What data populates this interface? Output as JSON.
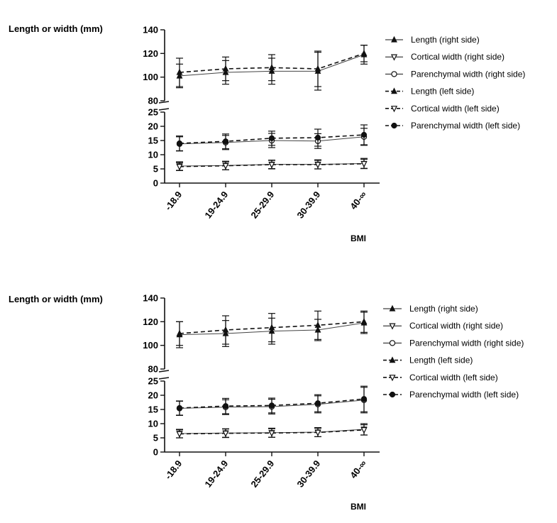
{
  "chart_data": [
    {
      "type": "line",
      "ylabel": "Length or width (mm)",
      "xlabel": "BMI",
      "categories": [
        "-18.9",
        "19-24.9",
        "25-29.9",
        "30-39.9",
        "40-∞"
      ],
      "y_axis_segments": [
        {
          "ylim": [
            80,
            140
          ],
          "ticks": [
            80,
            100,
            120,
            140
          ]
        },
        {
          "ylim": [
            0,
            25
          ],
          "ticks": [
            0,
            5,
            10,
            15,
            20,
            25
          ]
        }
      ],
      "grid": false,
      "legend_position": "right",
      "series": [
        {
          "name": "Length (right side)",
          "marker": "triangle-up",
          "dash": "solid",
          "values": [
            101,
            104,
            105,
            105,
            119
          ],
          "errors": [
            10,
            10,
            11,
            16,
            8
          ]
        },
        {
          "name": "Cortical width (right side)",
          "marker": "triangle-down",
          "dash": "solid",
          "values": [
            6.0,
            6.2,
            6.6,
            6.6,
            6.9
          ],
          "errors": [
            1.5,
            1.5,
            1.5,
            1.6,
            1.8
          ]
        },
        {
          "name": "Parenchymal width (right side)",
          "marker": "circle-open",
          "dash": "solid",
          "values": [
            13.8,
            14.3,
            15.0,
            14.8,
            16.3
          ],
          "errors": [
            2.5,
            2.5,
            2.5,
            2.6,
            3.0
          ]
        },
        {
          "name": "Length (left side)",
          "marker": "triangle-up",
          "dash": "dashed",
          "values": [
            104,
            107,
            108,
            107,
            120
          ],
          "errors": [
            12,
            10,
            11,
            15,
            7
          ]
        },
        {
          "name": "Cortical width (left side)",
          "marker": "triangle-down",
          "dash": "dashed",
          "values": [
            5.8,
            6.1,
            6.5,
            6.5,
            6.8
          ],
          "errors": [
            1.4,
            1.4,
            1.5,
            1.5,
            1.6
          ]
        },
        {
          "name": "Parenchymal width (left side)",
          "marker": "circle-filled",
          "dash": "dashed",
          "values": [
            14.0,
            14.7,
            15.8,
            16.0,
            17.0
          ],
          "errors": [
            2.6,
            2.6,
            2.5,
            3.0,
            3.5
          ]
        }
      ]
    },
    {
      "type": "line",
      "ylabel": "Length or width (mm)",
      "xlabel": "BMI",
      "categories": [
        "-18.9",
        "19-24.9",
        "25-29.9",
        "30-39.9",
        "40-∞"
      ],
      "y_axis_segments": [
        {
          "ylim": [
            80,
            140
          ],
          "ticks": [
            80,
            100,
            120,
            140
          ]
        },
        {
          "ylim": [
            0,
            25
          ],
          "ticks": [
            0,
            5,
            10,
            15,
            20,
            25
          ]
        }
      ],
      "grid": false,
      "legend_position": "right",
      "series": [
        {
          "name": "Length (right side)",
          "marker": "triangle-up",
          "dash": "solid",
          "values": [
            109,
            110,
            112,
            113,
            119
          ],
          "errors": [
            11,
            11,
            11,
            9,
            9
          ]
        },
        {
          "name": "Cortical width (right side)",
          "marker": "triangle-down",
          "dash": "solid",
          "values": [
            6.5,
            6.7,
            6.8,
            7.0,
            8.0
          ],
          "errors": [
            1.5,
            1.5,
            1.6,
            1.6,
            2.0
          ]
        },
        {
          "name": "Parenchymal width (right side)",
          "marker": "circle-open",
          "dash": "solid",
          "values": [
            15.4,
            15.8,
            16.0,
            16.8,
            18.3
          ],
          "errors": [
            2.5,
            2.6,
            2.6,
            3.0,
            4.5
          ]
        },
        {
          "name": "Length (left side)",
          "marker": "triangle-up",
          "dash": "dashed",
          "values": [
            110,
            113,
            115,
            117,
            120
          ],
          "errors": [
            10,
            12,
            12,
            12,
            9
          ]
        },
        {
          "name": "Cortical width (left side)",
          "marker": "triangle-down",
          "dash": "dashed",
          "values": [
            6.4,
            6.6,
            6.7,
            6.9,
            7.8
          ],
          "errors": [
            1.4,
            1.5,
            1.5,
            1.5,
            1.8
          ]
        },
        {
          "name": "Parenchymal width (left side)",
          "marker": "circle-filled",
          "dash": "dashed",
          "values": [
            15.5,
            16.2,
            16.4,
            17.2,
            18.7
          ],
          "errors": [
            2.5,
            2.7,
            2.6,
            3.0,
            4.5
          ]
        }
      ]
    }
  ]
}
